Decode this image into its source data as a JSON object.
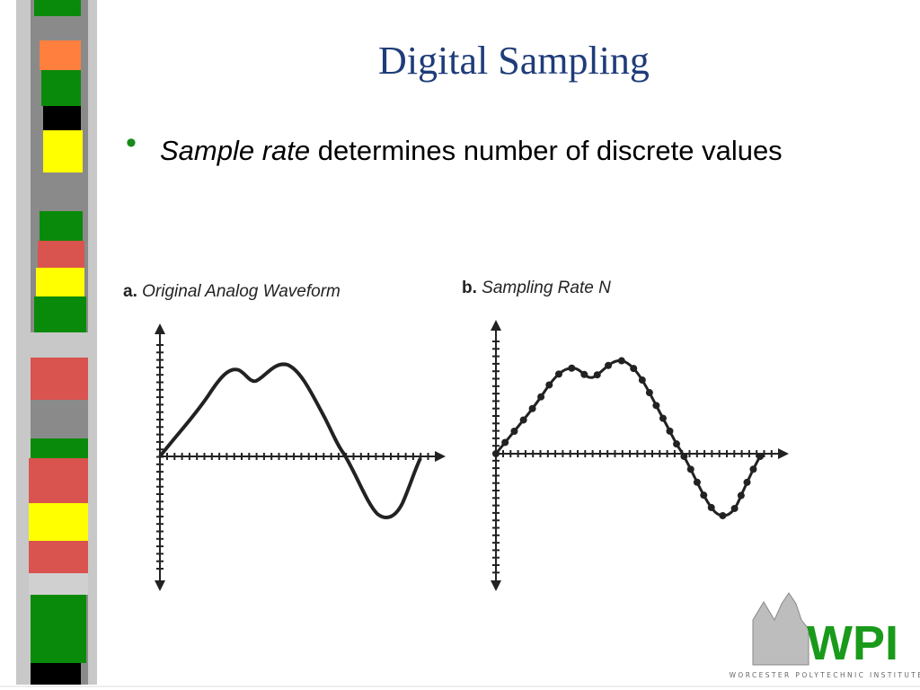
{
  "title": "Digital Sampling",
  "bullet": {
    "emphasis": "Sample rate",
    "text": "determines number of discrete values"
  },
  "figures": [
    {
      "letter": "a.",
      "caption": "Original Analog Waveform"
    },
    {
      "letter": "b.",
      "caption": "Sampling Rate N"
    }
  ],
  "logo": {
    "mark": "WPI",
    "name": "WORCESTER POLYTECHNIC INSTITUTE"
  }
}
